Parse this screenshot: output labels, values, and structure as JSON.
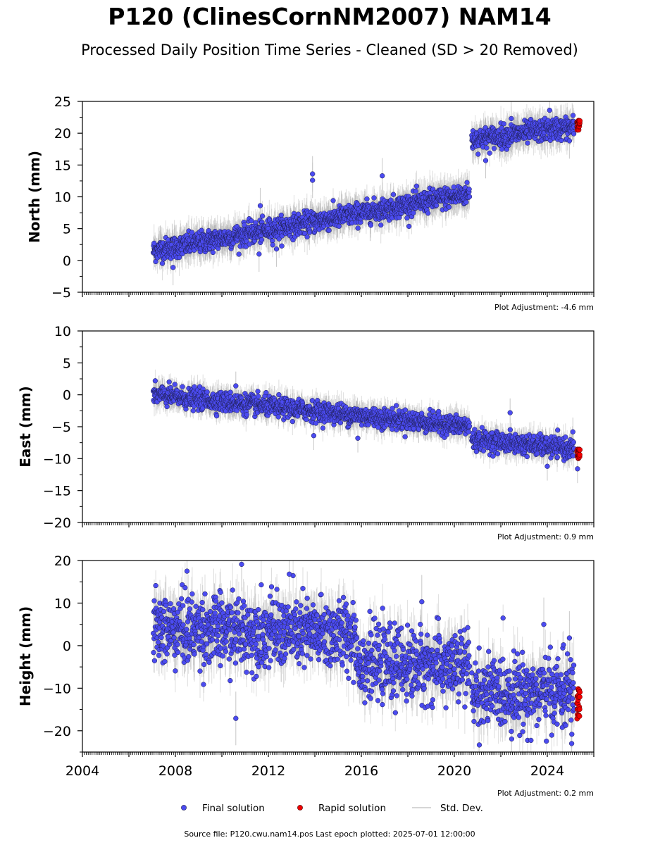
{
  "title": "P120 (ClinesCornNM2007) NAM14",
  "subtitle": "Processed Daily Position Time Series - Cleaned (SD > 20 Removed)",
  "legend": {
    "final": "Final solution",
    "rapid": "Rapid solution",
    "std": "Std. Dev."
  },
  "source": "Source file: P120.cwu.nam14.pos  Last epoch plotted: 2025-07-01 12:00:00",
  "colors": {
    "final": "#4b4bf0",
    "final_edge": "#1c1c4a",
    "rapid": "#ee0000",
    "std": "#c8c8c8"
  },
  "chart_data": [
    {
      "type": "scatter",
      "ylabel": "North (mm)",
      "adjustment": "Plot Adjustment: -4.6 mm",
      "xlim": [
        2004,
        2026
      ],
      "ylim": [
        -5,
        25
      ],
      "yticks": [
        -5,
        0,
        5,
        10,
        15,
        20,
        25
      ],
      "xticks": [
        2004,
        2008,
        2012,
        2016,
        2020,
        2024
      ],
      "show_xtick_labels": false,
      "final_trend": [
        {
          "x": [
            2007.05,
            2020.65
          ],
          "y": [
            1.5,
            10.5
          ]
        },
        {
          "x": [
            2020.75,
            2025.15
          ],
          "y": [
            19.0,
            21.0
          ]
        }
      ],
      "scatter_sd": 1.0,
      "std_spread": 2.0,
      "outliers": [
        {
          "x": 2013.9,
          "y": 13.6
        },
        {
          "x": 2013.9,
          "y": 12.6
        },
        {
          "x": 2016.9,
          "y": 13.3
        },
        {
          "x": 2011.65,
          "y": 8.6
        },
        {
          "x": 2021.35,
          "y": 15.7
        },
        {
          "x": 2007.9,
          "y": -1.1
        },
        {
          "x": 2011.6,
          "y": 1.0
        },
        {
          "x": 2012.35,
          "y": 1.8
        },
        {
          "x": 2024.95,
          "y": 18.8
        },
        {
          "x": 2022.45,
          "y": 22.3
        },
        {
          "x": 2024.1,
          "y": 23.6
        }
      ],
      "rapid": {
        "x": [
          2025.28,
          2025.4
        ],
        "y": [
          20.5,
          22.0
        ]
      }
    },
    {
      "type": "scatter",
      "ylabel": "East (mm)",
      "adjustment": "Plot Adjustment: 0.9 mm",
      "xlim": [
        2004,
        2026
      ],
      "ylim": [
        -20,
        10
      ],
      "yticks": [
        -20,
        -15,
        -10,
        -5,
        0,
        5,
        10
      ],
      "xticks": [
        2004,
        2008,
        2012,
        2016,
        2020,
        2024
      ],
      "show_xtick_labels": false,
      "final_trend": [
        {
          "x": [
            2007.05,
            2020.65
          ],
          "y": [
            0.0,
            -5.0
          ]
        },
        {
          "x": [
            2020.75,
            2025.15
          ],
          "y": [
            -7.0,
            -8.5
          ]
        }
      ],
      "scatter_sd": 0.9,
      "std_spread": 1.6,
      "outliers": [
        {
          "x": 2010.6,
          "y": 1.4
        },
        {
          "x": 2013.95,
          "y": -6.4
        },
        {
          "x": 2015.85,
          "y": -6.8
        },
        {
          "x": 2022.4,
          "y": -2.8
        },
        {
          "x": 2024.0,
          "y": -11.2
        },
        {
          "x": 2025.3,
          "y": -11.6
        },
        {
          "x": 2025.1,
          "y": -5.8
        }
      ],
      "rapid": {
        "x": [
          2025.28,
          2025.4
        ],
        "y": [
          -10.0,
          -8.5
        ]
      }
    },
    {
      "type": "scatter",
      "ylabel": "Height (mm)",
      "adjustment": "Plot Adjustment: 0.2 mm",
      "xlim": [
        2004,
        2026
      ],
      "ylim": [
        -25,
        20
      ],
      "yticks": [
        -20,
        -10,
        0,
        10,
        20
      ],
      "xticks": [
        2004,
        2008,
        2012,
        2016,
        2020,
        2024
      ],
      "xtick_labels": [
        "2004",
        "2008",
        "2012",
        "2016",
        "2020",
        "2024"
      ],
      "show_xtick_labels": true,
      "final_trend": [
        {
          "x": [
            2007.05,
            2015.8
          ],
          "y": [
            4.0,
            2.5
          ]
        },
        {
          "x": [
            2015.8,
            2020.65
          ],
          "y": [
            -4.0,
            -5.0
          ]
        },
        {
          "x": [
            2020.75,
            2025.15
          ],
          "y": [
            -11.0,
            -11.0
          ]
        }
      ],
      "scatter_sd": 4.8,
      "std_spread": 4.5,
      "outliers": [
        {
          "x": 2010.85,
          "y": 19.1
        },
        {
          "x": 2010.6,
          "y": -17.1
        },
        {
          "x": 2018.6,
          "y": 10.3
        },
        {
          "x": 2012.9,
          "y": 16.8
        },
        {
          "x": 2008.5,
          "y": 17.5
        },
        {
          "x": 2024.95,
          "y": 1.8
        },
        {
          "x": 2023.85,
          "y": 5.0
        },
        {
          "x": 2025.05,
          "y": -23.0
        }
      ],
      "rapid": {
        "x": [
          2025.28,
          2025.4
        ],
        "y": [
          -17.5,
          -10.0
        ]
      }
    }
  ]
}
